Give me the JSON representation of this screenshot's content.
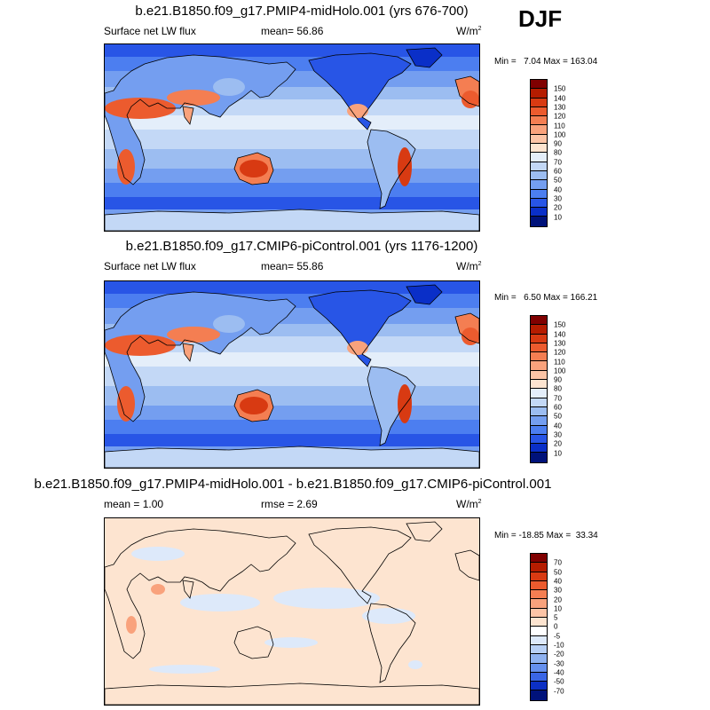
{
  "season": "DJF",
  "panels": [
    {
      "title": "b.e21.B1850.f09_g17.PMIP4-midHolo.001 (yrs 676-700)",
      "variable": "Surface net LW flux",
      "mean_text": "mean=  56.86",
      "units": "W/m",
      "units_sup": "2",
      "minmax": "Min =   7.04 Max = 163.04",
      "colorbar_labels": [
        "150",
        "140",
        "130",
        "120",
        "110",
        "100",
        "90",
        "80",
        "70",
        "60",
        "50",
        "40",
        "30",
        "20",
        "10"
      ],
      "colorbar_colors": [
        "#800000",
        "#b51c00",
        "#d83a12",
        "#ec5b2e",
        "#f47e52",
        "#f9a27c",
        "#fcc4a6",
        "#fde4d0",
        "#e4eefa",
        "#c3d8f6",
        "#9cbdf1",
        "#749ef0",
        "#4c7ef0",
        "#2855e6",
        "#0a2fc8",
        "#00127a"
      ],
      "field": "abs"
    },
    {
      "title": "b.e21.B1850.f09_g17.CMIP6-piControl.001 (yrs 1176-1200)",
      "variable": "Surface net LW flux",
      "mean_text": "mean=  55.86",
      "units": "W/m",
      "units_sup": "2",
      "minmax": "Min =   6.50 Max = 166.21",
      "colorbar_labels": [
        "150",
        "140",
        "130",
        "120",
        "110",
        "100",
        "90",
        "80",
        "70",
        "60",
        "50",
        "40",
        "30",
        "20",
        "10"
      ],
      "colorbar_colors": [
        "#800000",
        "#b51c00",
        "#d83a12",
        "#ec5b2e",
        "#f47e52",
        "#f9a27c",
        "#fcc4a6",
        "#fde4d0",
        "#e4eefa",
        "#c3d8f6",
        "#9cbdf1",
        "#749ef0",
        "#4c7ef0",
        "#2855e6",
        "#0a2fc8",
        "#00127a"
      ],
      "field": "abs"
    },
    {
      "title": "b.e21.B1850.f09_g17.PMIP4-midHolo.001 - b.e21.B1850.f09_g17.CMIP6-piControl.001",
      "variable": "mean =   1.00",
      "mean_text": "rmse =   2.69",
      "units": "W/m",
      "units_sup": "2",
      "minmax": "Min = -18.85 Max =  33.34",
      "colorbar_labels": [
        "70",
        "50",
        "40",
        "30",
        "20",
        "10",
        "5",
        "0",
        "-5",
        "-10",
        "-20",
        "-30",
        "-40",
        "-50",
        "-70"
      ],
      "colorbar_colors": [
        "#800000",
        "#b51c00",
        "#d83a12",
        "#ec5b2e",
        "#f47e52",
        "#f9a27c",
        "#fcc4a6",
        "#fde4d0",
        "#ffffff",
        "#dde9fa",
        "#b8d0f5",
        "#8fb2f0",
        "#6590ee",
        "#3a66e6",
        "#0c30c4",
        "#00127a"
      ],
      "field": "diff"
    }
  ]
}
